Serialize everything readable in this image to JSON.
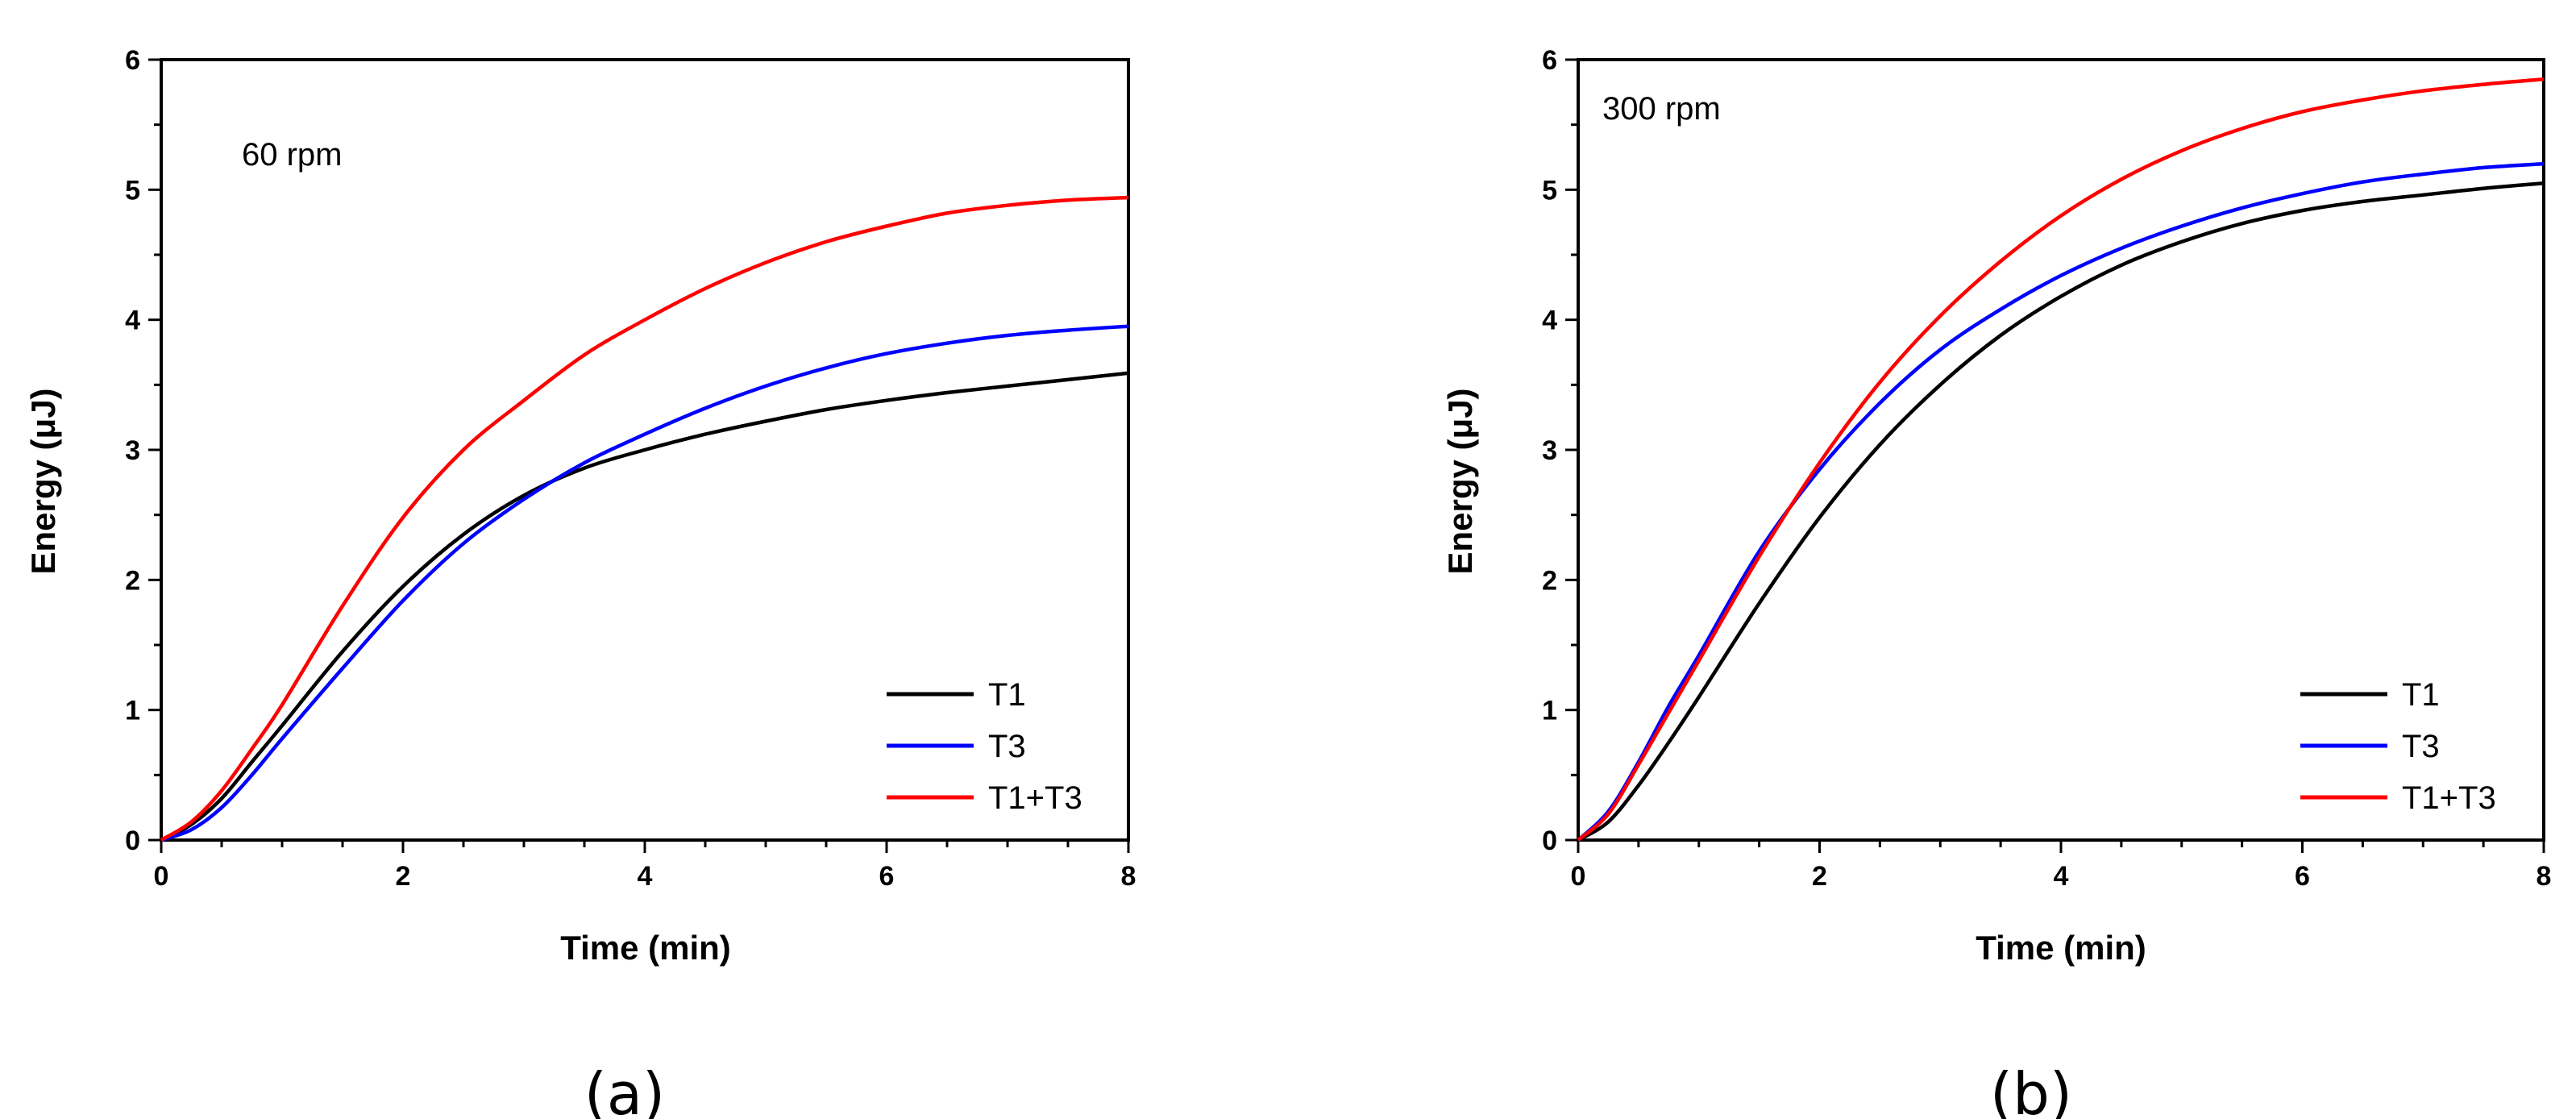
{
  "chart_data": [
    {
      "type": "line",
      "panel_label": "(a)",
      "annotation": "60 rpm",
      "xlabel": "Time (min)",
      "ylabel": "Energy (μJ)",
      "xlim": [
        0,
        8
      ],
      "ylim": [
        0,
        6
      ],
      "xticks": [
        "0",
        "2",
        "4",
        "6",
        "8"
      ],
      "yticks": [
        "0",
        "1",
        "2",
        "3",
        "4",
        "5",
        "6"
      ],
      "legend_position": "bottom-right",
      "x": [
        0,
        0.25,
        0.5,
        0.75,
        1,
        1.5,
        2,
        2.5,
        3,
        3.5,
        4,
        4.5,
        5,
        5.5,
        6,
        6.5,
        7,
        7.5,
        8
      ],
      "series": [
        {
          "name": "T1",
          "color": "#000000",
          "values": [
            0,
            0.12,
            0.32,
            0.6,
            0.88,
            1.45,
            1.95,
            2.35,
            2.65,
            2.86,
            3.0,
            3.12,
            3.22,
            3.31,
            3.38,
            3.44,
            3.49,
            3.54,
            3.59
          ]
        },
        {
          "name": "T3",
          "color": "#0000ff",
          "values": [
            0,
            0.08,
            0.25,
            0.5,
            0.78,
            1.32,
            1.84,
            2.28,
            2.62,
            2.9,
            3.12,
            3.32,
            3.49,
            3.63,
            3.74,
            3.82,
            3.88,
            3.92,
            3.95
          ]
        },
        {
          "name": "T1+T3",
          "color": "#ff0000",
          "values": [
            0,
            0.14,
            0.38,
            0.7,
            1.04,
            1.8,
            2.48,
            3.0,
            3.38,
            3.73,
            4.0,
            4.24,
            4.44,
            4.6,
            4.72,
            4.82,
            4.88,
            4.92,
            4.94
          ]
        }
      ]
    },
    {
      "type": "line",
      "panel_label": "(b)",
      "annotation": "300 rpm",
      "xlabel": "Time (min)",
      "ylabel": "Energy (μJ)",
      "xlim": [
        0,
        8
      ],
      "ylim": [
        0,
        6
      ],
      "xticks": [
        "0",
        "2",
        "4",
        "6",
        "8"
      ],
      "yticks": [
        "0",
        "1",
        "2",
        "3",
        "4",
        "5",
        "6"
      ],
      "legend_position": "bottom-right",
      "x": [
        0,
        0.25,
        0.5,
        0.75,
        1,
        1.5,
        2,
        2.5,
        3,
        3.5,
        4,
        4.5,
        5,
        5.5,
        6,
        6.5,
        7,
        7.5,
        8
      ],
      "series": [
        {
          "name": "T1",
          "color": "#000000",
          "values": [
            0,
            0.14,
            0.42,
            0.75,
            1.1,
            1.82,
            2.48,
            3.04,
            3.5,
            3.88,
            4.18,
            4.42,
            4.6,
            4.74,
            4.84,
            4.91,
            4.96,
            5.01,
            5.05
          ]
        },
        {
          "name": "T3",
          "color": "#0000ff",
          "values": [
            0,
            0.22,
            0.6,
            1.03,
            1.42,
            2.22,
            2.85,
            3.36,
            3.77,
            4.08,
            4.34,
            4.55,
            4.72,
            4.86,
            4.97,
            5.06,
            5.12,
            5.17,
            5.2
          ]
        },
        {
          "name": "T1+T3",
          "color": "#ff0000",
          "values": [
            0,
            0.2,
            0.58,
            0.98,
            1.38,
            2.18,
            2.9,
            3.52,
            4.03,
            4.45,
            4.8,
            5.08,
            5.3,
            5.47,
            5.6,
            5.69,
            5.76,
            5.81,
            5.85
          ]
        }
      ]
    }
  ]
}
